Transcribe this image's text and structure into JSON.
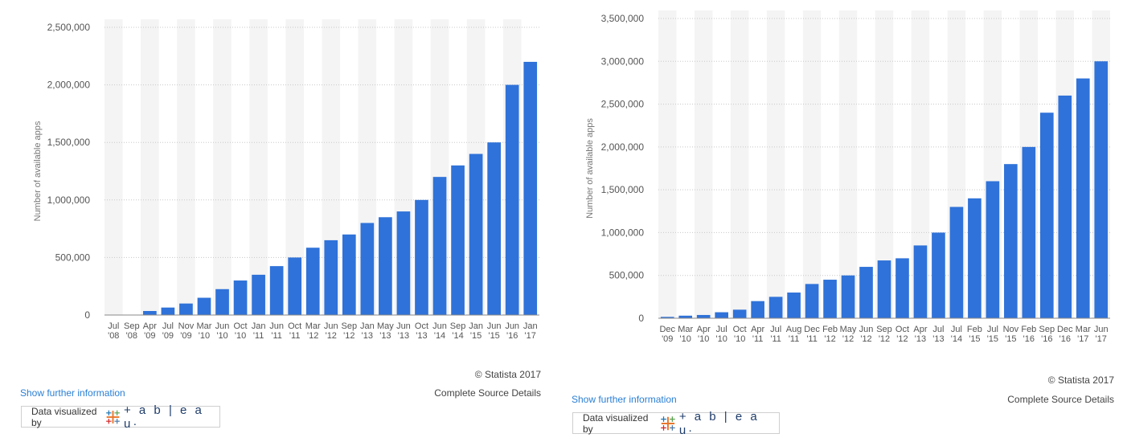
{
  "panels": [
    {
      "copyright": "© Statista 2017",
      "source_details": "Complete Source Details",
      "more_info": "Show further information",
      "badge_text": "Data visualized by",
      "badge_brand": "+ a b | e a u·"
    },
    {
      "copyright": "© Statista 2017",
      "source_details": "Complete Source Details",
      "more_info": "Show further information",
      "badge_text": "Data visualized by",
      "badge_brand": "+ a b | e a u·"
    }
  ],
  "chart_data": [
    {
      "type": "bar",
      "ylabel": "Number of available apps",
      "ylim": [
        0,
        2500000
      ],
      "yticks": [
        "0",
        "500,000",
        "1,000,000",
        "1,500,000",
        "2,000,000",
        "2,500,000"
      ],
      "grid": true,
      "colors": {
        "bar": "#2f72d9",
        "stripe": "#f4f4f4",
        "grid": "#c8c8c8"
      },
      "categories": [
        [
          "Jul",
          "'08"
        ],
        [
          "Sep",
          "'08"
        ],
        [
          "Apr",
          "'09"
        ],
        [
          "Jul",
          "'09"
        ],
        [
          "Nov",
          "'09"
        ],
        [
          "Mar",
          "'10"
        ],
        [
          "Jun",
          "'10"
        ],
        [
          "Oct",
          "'10"
        ],
        [
          "Jan",
          "'11"
        ],
        [
          "Jun",
          "'11"
        ],
        [
          "Oct",
          "'11"
        ],
        [
          "Mar",
          "'12"
        ],
        [
          "Jun",
          "'12"
        ],
        [
          "Sep",
          "'12"
        ],
        [
          "Jan",
          "'13"
        ],
        [
          "May",
          "'13"
        ],
        [
          "Jun",
          "'13"
        ],
        [
          "Oct",
          "'13"
        ],
        [
          "Jun",
          "'14"
        ],
        [
          "Sep",
          "'14"
        ],
        [
          "Jan",
          "'15"
        ],
        [
          "Jun",
          "'15"
        ],
        [
          "Jun",
          "'16"
        ],
        [
          "Jan",
          "'17"
        ]
      ],
      "values": [
        800,
        3000,
        35000,
        65000,
        100000,
        150000,
        225000,
        300000,
        350000,
        425000,
        500000,
        585000,
        650000,
        700000,
        800000,
        850000,
        900000,
        1000000,
        1200000,
        1300000,
        1400000,
        1500000,
        2000000,
        2200000
      ]
    },
    {
      "type": "bar",
      "ylabel": "Number of available apps",
      "ylim": [
        0,
        3500000
      ],
      "yticks": [
        "0",
        "500,000",
        "1,000,000",
        "1,500,000",
        "2,000,000",
        "2,500,000",
        "3,000,000",
        "3,500,000"
      ],
      "grid": true,
      "colors": {
        "bar": "#2f72d9",
        "stripe": "#f4f4f4",
        "grid": "#c8c8c8"
      },
      "categories": [
        [
          "Dec",
          "'09"
        ],
        [
          "Mar",
          "'10"
        ],
        [
          "Apr",
          "'10"
        ],
        [
          "Jul",
          "'10"
        ],
        [
          "Oct",
          "'10"
        ],
        [
          "Apr",
          "'11"
        ],
        [
          "Jul",
          "'11"
        ],
        [
          "Aug",
          "'11"
        ],
        [
          "Dec",
          "'11"
        ],
        [
          "Feb",
          "'12"
        ],
        [
          "May",
          "'12"
        ],
        [
          "Jun",
          "'12"
        ],
        [
          "Sep",
          "'12"
        ],
        [
          "Oct",
          "'12"
        ],
        [
          "Apr",
          "'13"
        ],
        [
          "Jul",
          "'13"
        ],
        [
          "Jul",
          "'14"
        ],
        [
          "Feb",
          "'15"
        ],
        [
          "Jul",
          "'15"
        ],
        [
          "Nov",
          "'15"
        ],
        [
          "Feb",
          "'16"
        ],
        [
          "Sep",
          "'16"
        ],
        [
          "Dec",
          "'16"
        ],
        [
          "Mar",
          "'17"
        ],
        [
          "Jun",
          "'17"
        ]
      ],
      "values": [
        16000,
        30000,
        38000,
        70000,
        100000,
        200000,
        250000,
        300000,
        400000,
        450000,
        500000,
        600000,
        675000,
        700000,
        850000,
        1000000,
        1300000,
        1400000,
        1600000,
        1800000,
        2000000,
        2400000,
        2600000,
        2800000,
        3000000
      ]
    }
  ]
}
